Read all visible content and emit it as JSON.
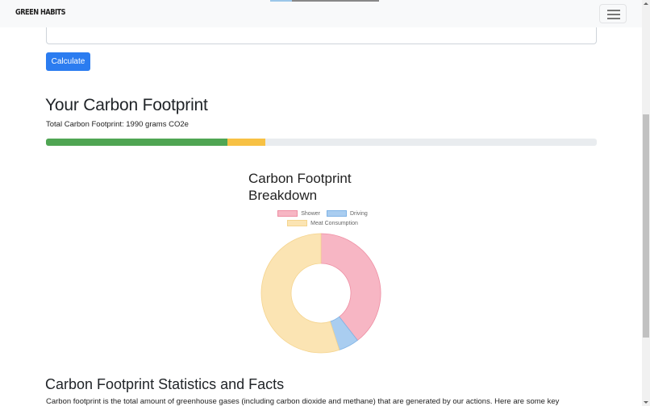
{
  "navbar": {
    "brand": "GREEN HABITS",
    "toggler_icon": "hamburger-menu-icon"
  },
  "form": {
    "input_value": "",
    "calculate_label": "Calculate"
  },
  "results": {
    "heading": "Your Carbon Footprint",
    "total_text": "Total Carbon Footprint: 1990 grams CO2e",
    "progress": [
      {
        "name": "green",
        "percent": 33,
        "color": "#4fa553"
      },
      {
        "name": "yellow",
        "percent": 6.8,
        "color": "#f7c144"
      }
    ],
    "progress_track_color": "#e9ecef"
  },
  "chart": {
    "title": "Carbon Footprint Breakdown",
    "legend": [
      {
        "label": "Shower",
        "fill": "#f7b6c4",
        "border": "#ee8ea3"
      },
      {
        "label": "Driving",
        "fill": "#a9cdf0",
        "border": "#7fb3e6"
      },
      {
        "label": "Meat Consumption",
        "fill": "#fbe4b3",
        "border": "#f5d48e"
      }
    ]
  },
  "chart_data": {
    "type": "doughnut",
    "title": "Carbon Footprint Breakdown",
    "categories": [
      "Shower",
      "Driving",
      "Meat Consumption"
    ],
    "values": [
      39.5,
      5.5,
      55
    ],
    "colors": [
      "#f7b6c4",
      "#a9cdf0",
      "#fbe4b3"
    ],
    "legend_position": "top"
  },
  "stats": {
    "heading": "Carbon Footprint Statistics and Facts",
    "paragraph": "Carbon footprint is the total amount of greenhouse gases (including carbon dioxide and methane) that are generated by our actions. Here are some key"
  }
}
